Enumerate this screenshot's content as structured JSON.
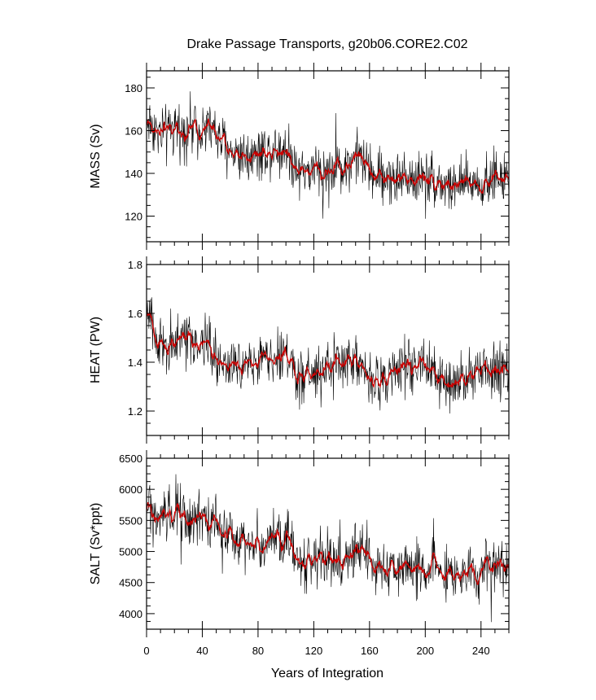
{
  "title": "Drake Passage Transports, g20b06.CORE2.C02",
  "xlabel": "Years of Integration",
  "colors": {
    "raw": "#000000",
    "smooth": "#cc0000"
  },
  "chart_data": [
    {
      "type": "line",
      "title": "Drake Passage Transports, g20b06.CORE2.C02",
      "ylabel": "MASS (Sv)",
      "xlim": [
        0,
        260
      ],
      "ylim": [
        108,
        188
      ],
      "xticks": [
        "0",
        "40",
        "80",
        "120",
        "160",
        "200",
        "240"
      ],
      "yticks": [
        "120",
        "140",
        "160",
        "180"
      ],
      "noise": 11,
      "series": [
        {
          "values_x": [
            0,
            5,
            10,
            20,
            30,
            40,
            48,
            55,
            62,
            70,
            80,
            90,
            100,
            105,
            112,
            120,
            130,
            140,
            150,
            155,
            160,
            170,
            180,
            190,
            200,
            210,
            215,
            220,
            230,
            240,
            250,
            260
          ],
          "values_y": [
            165,
            162,
            158,
            160,
            161,
            162,
            160,
            154,
            150,
            149,
            150,
            151,
            152,
            146,
            142,
            141,
            142,
            143,
            147,
            147,
            141,
            138,
            138,
            138,
            139,
            136,
            134,
            134,
            135,
            136,
            138,
            138
          ]
        }
      ]
    },
    {
      "type": "line",
      "ylabel": "HEAT (PW)",
      "xlim": [
        0,
        260
      ],
      "ylim": [
        1.1,
        1.8
      ],
      "xticks": [
        "0",
        "40",
        "80",
        "120",
        "160",
        "200",
        "240"
      ],
      "yticks": [
        "1.2",
        "1.4",
        "1.6",
        "1.8"
      ],
      "noise": 0.095,
      "series": [
        {
          "values_x": [
            0,
            3,
            8,
            15,
            22,
            30,
            40,
            48,
            52,
            60,
            70,
            80,
            90,
            100,
            105,
            112,
            120,
            130,
            140,
            150,
            155,
            160,
            170,
            180,
            190,
            200,
            205,
            210,
            220,
            230,
            240,
            250,
            260
          ],
          "values_y": [
            1.6,
            1.58,
            1.5,
            1.46,
            1.48,
            1.49,
            1.49,
            1.48,
            1.4,
            1.38,
            1.4,
            1.41,
            1.42,
            1.44,
            1.37,
            1.35,
            1.36,
            1.38,
            1.39,
            1.4,
            1.4,
            1.33,
            1.34,
            1.36,
            1.37,
            1.39,
            1.38,
            1.31,
            1.31,
            1.34,
            1.36,
            1.37,
            1.38
          ]
        }
      ]
    },
    {
      "type": "line",
      "ylabel": "SALT (Sv*ppt)",
      "xlim": [
        0,
        260
      ],
      "ylim": [
        3750,
        6500
      ],
      "xticks": [
        "0",
        "40",
        "80",
        "120",
        "160",
        "200",
        "240"
      ],
      "yticks": [
        "4000",
        "4500",
        "5000",
        "5500",
        "6000",
        "6500"
      ],
      "noise": 380,
      "series": [
        {
          "values_x": [
            0,
            5,
            10,
            20,
            30,
            40,
            48,
            55,
            62,
            70,
            80,
            90,
            100,
            105,
            112,
            120,
            130,
            140,
            150,
            155,
            160,
            170,
            180,
            190,
            200,
            210,
            215,
            220,
            230,
            240,
            250,
            260
          ],
          "values_y": [
            5700,
            5620,
            5520,
            5560,
            5560,
            5590,
            5540,
            5320,
            5200,
            5150,
            5150,
            5180,
            5200,
            5000,
            4920,
            4890,
            4900,
            4920,
            5050,
            5050,
            4850,
            4740,
            4740,
            4740,
            4760,
            4700,
            4620,
            4620,
            4650,
            4680,
            4750,
            4750
          ]
        }
      ]
    }
  ]
}
